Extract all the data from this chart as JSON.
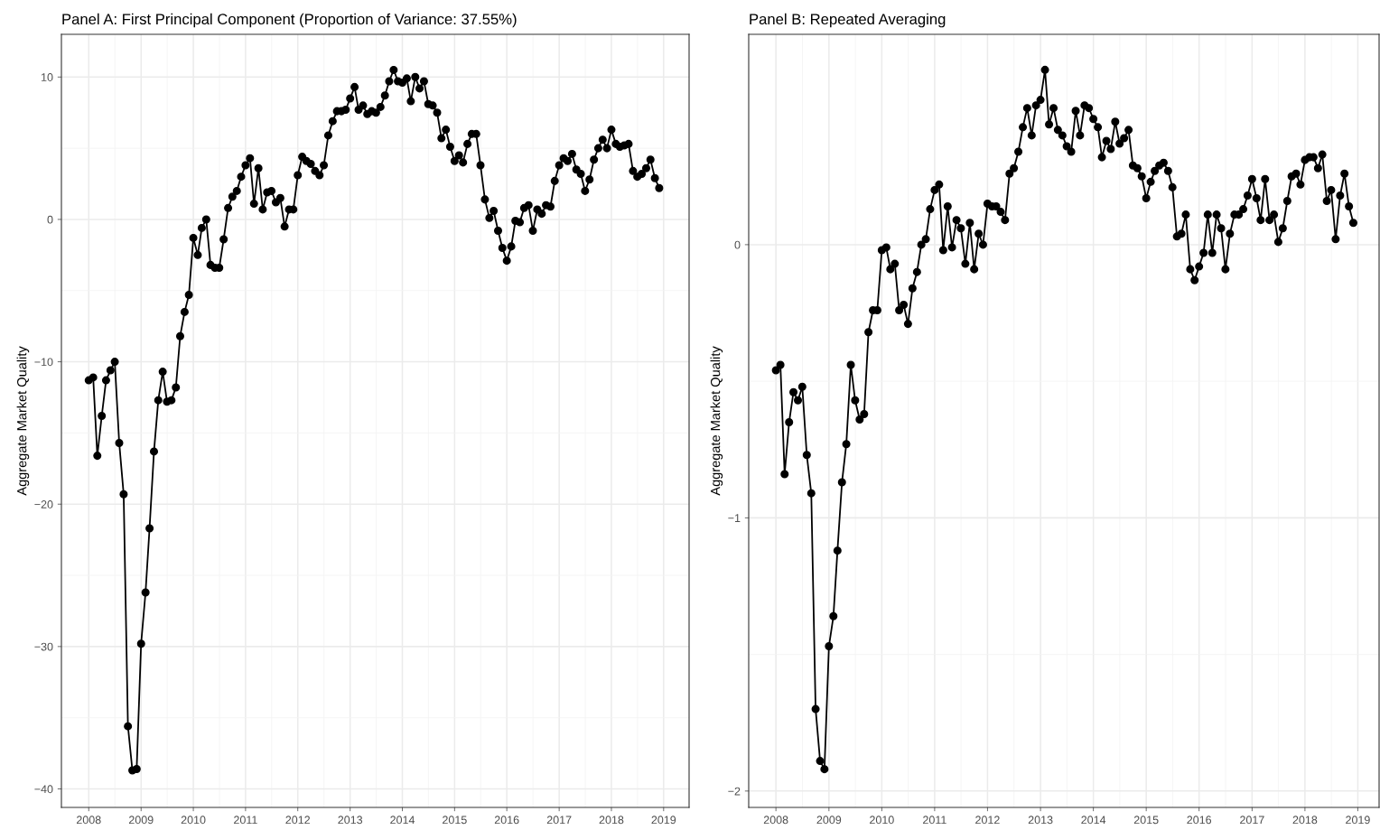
{
  "chart_data": [
    {
      "type": "line",
      "title": "Panel A: First Principal Component (Proportion of Variance: 37.55%)",
      "ylabel": "Aggregate Market Quality",
      "x": [
        "2008-01",
        "2008-02",
        "2008-03",
        "2008-04",
        "2008-05",
        "2008-06",
        "2008-07",
        "2008-08",
        "2008-09",
        "2008-10",
        "2008-11",
        "2008-12",
        "2009-01",
        "2009-02",
        "2009-03",
        "2009-04",
        "2009-05",
        "2009-06",
        "2009-07",
        "2009-08",
        "2009-09",
        "2009-10",
        "2009-11",
        "2009-12",
        "2010-01",
        "2010-02",
        "2010-03",
        "2010-04",
        "2010-05",
        "2010-06",
        "2010-07",
        "2010-08",
        "2010-09",
        "2010-10",
        "2010-11",
        "2010-12",
        "2011-01",
        "2011-02",
        "2011-03",
        "2011-04",
        "2011-05",
        "2011-06",
        "2011-07",
        "2011-08",
        "2011-09",
        "2011-10",
        "2011-11",
        "2011-12",
        "2012-01",
        "2012-02",
        "2012-03",
        "2012-04",
        "2012-05",
        "2012-06",
        "2012-07",
        "2012-08",
        "2012-09",
        "2012-10",
        "2012-11",
        "2012-12",
        "2013-01",
        "2013-02",
        "2013-03",
        "2013-04",
        "2013-05",
        "2013-06",
        "2013-07",
        "2013-08",
        "2013-09",
        "2013-10",
        "2013-11",
        "2013-12",
        "2014-01",
        "2014-02",
        "2014-03",
        "2014-04",
        "2014-05",
        "2014-06",
        "2014-07",
        "2014-08",
        "2014-09",
        "2014-10",
        "2014-11",
        "2014-12",
        "2015-01",
        "2015-02",
        "2015-03",
        "2015-04",
        "2015-05",
        "2015-06",
        "2015-07",
        "2015-08",
        "2015-09",
        "2015-10",
        "2015-11",
        "2015-12",
        "2016-01",
        "2016-02",
        "2016-03",
        "2016-04",
        "2016-05",
        "2016-06",
        "2016-07",
        "2016-08",
        "2016-09",
        "2016-10",
        "2016-11",
        "2016-12",
        "2017-01",
        "2017-02",
        "2017-03",
        "2017-04",
        "2017-05",
        "2017-06",
        "2017-07",
        "2017-08",
        "2017-09",
        "2017-10",
        "2017-11",
        "2017-12",
        "2018-01",
        "2018-02",
        "2018-03",
        "2018-04",
        "2018-05",
        "2018-06",
        "2018-07",
        "2018-08",
        "2018-09",
        "2018-10",
        "2018-11",
        "2018-12"
      ],
      "marker": "circle",
      "grid": true,
      "color": "#000000",
      "values": [
        -11.3,
        -11.1,
        -16.6,
        -13.8,
        -11.3,
        -10.6,
        -10.0,
        -15.7,
        -19.3,
        -35.6,
        -38.7,
        -38.6,
        -29.8,
        -26.2,
        -21.7,
        -16.3,
        -12.7,
        -10.7,
        -12.8,
        -12.7,
        -11.8,
        -8.2,
        -6.5,
        -5.3,
        -1.3,
        -2.5,
        -0.6,
        0.0,
        -3.2,
        -3.4,
        -3.4,
        -1.4,
        0.8,
        1.6,
        2.0,
        3.0,
        3.8,
        4.3,
        1.1,
        3.6,
        0.7,
        1.9,
        2.0,
        1.2,
        1.5,
        -0.5,
        0.7,
        0.7,
        3.1,
        4.4,
        4.1,
        3.9,
        3.4,
        3.1,
        3.8,
        5.9,
        6.9,
        7.6,
        7.6,
        7.7,
        8.5,
        9.3,
        7.7,
        8.0,
        7.4,
        7.6,
        7.5,
        7.9,
        8.7,
        9.7,
        10.5,
        9.7,
        9.6,
        9.9,
        8.3,
        10.0,
        9.2,
        9.7,
        8.1,
        8.0,
        7.5,
        5.7,
        6.3,
        5.1,
        4.1,
        4.5,
        4.0,
        5.3,
        6.0,
        6.0,
        3.8,
        1.4,
        0.1,
        0.6,
        -0.8,
        -2.0,
        -2.9,
        -1.9,
        -0.1,
        -0.2,
        0.8,
        1.0,
        -0.8,
        0.7,
        0.4,
        1.0,
        0.9,
        2.7,
        3.8,
        4.3,
        4.1,
        4.6,
        3.5,
        3.2,
        2.0,
        2.8,
        4.2,
        5.0,
        5.6,
        5.0,
        6.3,
        5.3,
        5.1,
        5.2,
        5.3,
        3.4,
        3.0,
        3.2,
        3.6,
        4.2,
        2.9,
        2.2
      ],
      "xlim": [
        "2007-06-24",
        "2019-06-28"
      ],
      "xticks": [
        "2008",
        "2009",
        "2010",
        "2011",
        "2012",
        "2013",
        "2014",
        "2015",
        "2016",
        "2017",
        "2018",
        "2019"
      ],
      "ylim": [
        -41.3,
        13.0
      ],
      "yticks": [
        -40,
        -30,
        -20,
        -10,
        0,
        10
      ]
    },
    {
      "type": "line",
      "title": "Panel B: Repeated Averaging",
      "ylabel": "Aggregate Market Quality",
      "x": [
        "2008-01",
        "2008-02",
        "2008-03",
        "2008-04",
        "2008-05",
        "2008-06",
        "2008-07",
        "2008-08",
        "2008-09",
        "2008-10",
        "2008-11",
        "2008-12",
        "2009-01",
        "2009-02",
        "2009-03",
        "2009-04",
        "2009-05",
        "2009-06",
        "2009-07",
        "2009-08",
        "2009-09",
        "2009-10",
        "2009-11",
        "2009-12",
        "2010-01",
        "2010-02",
        "2010-03",
        "2010-04",
        "2010-05",
        "2010-06",
        "2010-07",
        "2010-08",
        "2010-09",
        "2010-10",
        "2010-11",
        "2010-12",
        "2011-01",
        "2011-02",
        "2011-03",
        "2011-04",
        "2011-05",
        "2011-06",
        "2011-07",
        "2011-08",
        "2011-09",
        "2011-10",
        "2011-11",
        "2011-12",
        "2012-01",
        "2012-02",
        "2012-03",
        "2012-04",
        "2012-05",
        "2012-06",
        "2012-07",
        "2012-08",
        "2012-09",
        "2012-10",
        "2012-11",
        "2012-12",
        "2013-01",
        "2013-02",
        "2013-03",
        "2013-04",
        "2013-05",
        "2013-06",
        "2013-07",
        "2013-08",
        "2013-09",
        "2013-10",
        "2013-11",
        "2013-12",
        "2014-01",
        "2014-02",
        "2014-03",
        "2014-04",
        "2014-05",
        "2014-06",
        "2014-07",
        "2014-08",
        "2014-09",
        "2014-10",
        "2014-11",
        "2014-12",
        "2015-01",
        "2015-02",
        "2015-03",
        "2015-04",
        "2015-05",
        "2015-06",
        "2015-07",
        "2015-08",
        "2015-09",
        "2015-10",
        "2015-11",
        "2015-12",
        "2016-01",
        "2016-02",
        "2016-03",
        "2016-04",
        "2016-05",
        "2016-06",
        "2016-07",
        "2016-08",
        "2016-09",
        "2016-10",
        "2016-11",
        "2016-12",
        "2017-01",
        "2017-02",
        "2017-03",
        "2017-04",
        "2017-05",
        "2017-06",
        "2017-07",
        "2017-08",
        "2017-09",
        "2017-10",
        "2017-11",
        "2017-12",
        "2018-01",
        "2018-02",
        "2018-03",
        "2018-04",
        "2018-05",
        "2018-06",
        "2018-07",
        "2018-08",
        "2018-09",
        "2018-10",
        "2018-11",
        "2018-12"
      ],
      "marker": "circle",
      "grid": true,
      "color": "#000000",
      "values": [
        -0.46,
        -0.44,
        -0.84,
        -0.65,
        -0.54,
        -0.57,
        -0.52,
        -0.77,
        -0.91,
        -1.7,
        -1.89,
        -1.92,
        -1.47,
        -1.36,
        -1.12,
        -0.87,
        -0.73,
        -0.44,
        -0.57,
        -0.64,
        -0.62,
        -0.32,
        -0.24,
        -0.24,
        -0.02,
        -0.01,
        -0.09,
        -0.07,
        -0.24,
        -0.22,
        -0.29,
        -0.16,
        -0.1,
        0.0,
        0.02,
        0.13,
        0.2,
        0.22,
        -0.02,
        0.14,
        -0.01,
        0.09,
        0.06,
        -0.07,
        0.08,
        -0.09,
        0.04,
        0.0,
        0.15,
        0.14,
        0.14,
        0.12,
        0.09,
        0.26,
        0.28,
        0.34,
        0.43,
        0.5,
        0.4,
        0.51,
        0.53,
        0.64,
        0.44,
        0.5,
        0.42,
        0.4,
        0.36,
        0.34,
        0.49,
        0.4,
        0.51,
        0.5,
        0.46,
        0.43,
        0.32,
        0.38,
        0.35,
        0.45,
        0.37,
        0.39,
        0.42,
        0.29,
        0.28,
        0.25,
        0.17,
        0.23,
        0.27,
        0.29,
        0.3,
        0.27,
        0.21,
        0.03,
        0.04,
        0.11,
        -0.09,
        -0.13,
        -0.08,
        -0.03,
        0.11,
        -0.03,
        0.11,
        0.06,
        -0.09,
        0.04,
        0.11,
        0.11,
        0.13,
        0.18,
        0.24,
        0.17,
        0.09,
        0.24,
        0.09,
        0.11,
        0.01,
        0.06,
        0.16,
        0.25,
        0.26,
        0.22,
        0.31,
        0.32,
        0.32,
        0.28,
        0.33,
        0.16,
        0.2,
        0.02,
        0.18,
        0.26,
        0.14,
        0.08
      ],
      "xlim": [
        "2007-06-27",
        "2019-05-28"
      ],
      "xticks": [
        "2008",
        "2009",
        "2010",
        "2011",
        "2012",
        "2013",
        "2014",
        "2015",
        "2016",
        "2017",
        "2018",
        "2019"
      ],
      "ylim": [
        -2.06,
        0.77
      ],
      "yticks": [
        -2,
        -1,
        0
      ]
    }
  ]
}
